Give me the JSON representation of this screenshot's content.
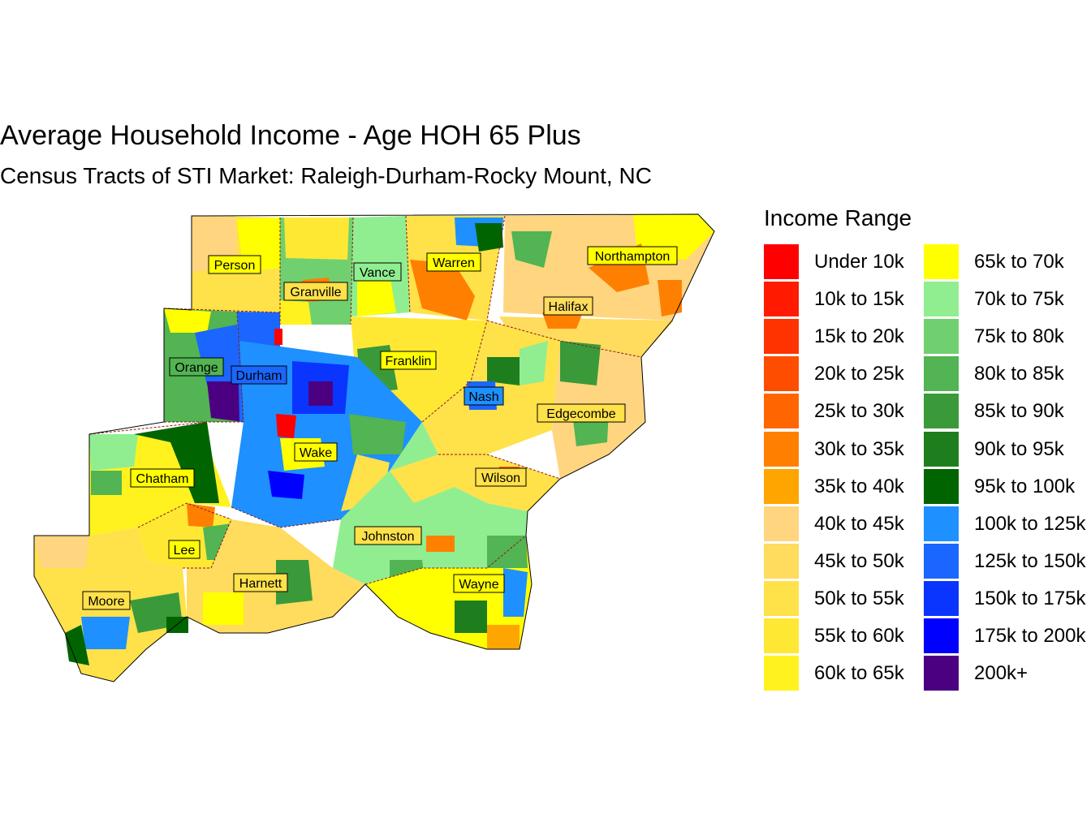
{
  "title": "Average Household Income - Age HOH 65 Plus",
  "subtitle": "Census Tracts of STI Market: Raleigh-Durham-Rocky Mount, NC",
  "legend": {
    "title": "Income Range",
    "items": [
      {
        "label": "Under 10k",
        "color": "#FF0000"
      },
      {
        "label": "10k to 15k",
        "color": "#FF1A00"
      },
      {
        "label": "15k to 20k",
        "color": "#FF3300"
      },
      {
        "label": "20k to 25k",
        "color": "#FF4D00"
      },
      {
        "label": "25k to 30k",
        "color": "#FF6600"
      },
      {
        "label": "30k to 35k",
        "color": "#FF8000"
      },
      {
        "label": "35k to 40k",
        "color": "#FFA500"
      },
      {
        "label": "40k to 45k",
        "color": "#FFD580"
      },
      {
        "label": "45k to 50k",
        "color": "#FFDB5E"
      },
      {
        "label": "50k to 55k",
        "color": "#FFE14A"
      },
      {
        "label": "55k to 60k",
        "color": "#FFE834"
      },
      {
        "label": "60k to 65k",
        "color": "#FFF21E"
      },
      {
        "label": "65k to 70k",
        "color": "#FFFF00"
      },
      {
        "label": "70k to 75k",
        "color": "#90EE90"
      },
      {
        "label": "75k to 80k",
        "color": "#70D070"
      },
      {
        "label": "80k to 85k",
        "color": "#52B452"
      },
      {
        "label": "85k to 90k",
        "color": "#3A9A3A"
      },
      {
        "label": "90k to 95k",
        "color": "#1E7E1E"
      },
      {
        "label": "95k to 100k",
        "color": "#006400"
      },
      {
        "label": "100k to 125k",
        "color": "#1E90FF"
      },
      {
        "label": "125k to 150k",
        "color": "#1A66FF"
      },
      {
        "label": "150k to 175k",
        "color": "#0A35FF"
      },
      {
        "label": "175k to 200k",
        "color": "#0000FF"
      },
      {
        "label": "200k+",
        "color": "#4B0082"
      }
    ]
  },
  "counties": [
    {
      "name": "Person"
    },
    {
      "name": "Granville"
    },
    {
      "name": "Vance"
    },
    {
      "name": "Warren"
    },
    {
      "name": "Northampton"
    },
    {
      "name": "Halifax"
    },
    {
      "name": "Orange"
    },
    {
      "name": "Durham"
    },
    {
      "name": "Franklin"
    },
    {
      "name": "Nash"
    },
    {
      "name": "Edgecombe"
    },
    {
      "name": "Wake"
    },
    {
      "name": "Chatham"
    },
    {
      "name": "Wilson"
    },
    {
      "name": "Johnston"
    },
    {
      "name": "Lee"
    },
    {
      "name": "Harnett"
    },
    {
      "name": "Wayne"
    },
    {
      "name": "Moore"
    }
  ]
}
